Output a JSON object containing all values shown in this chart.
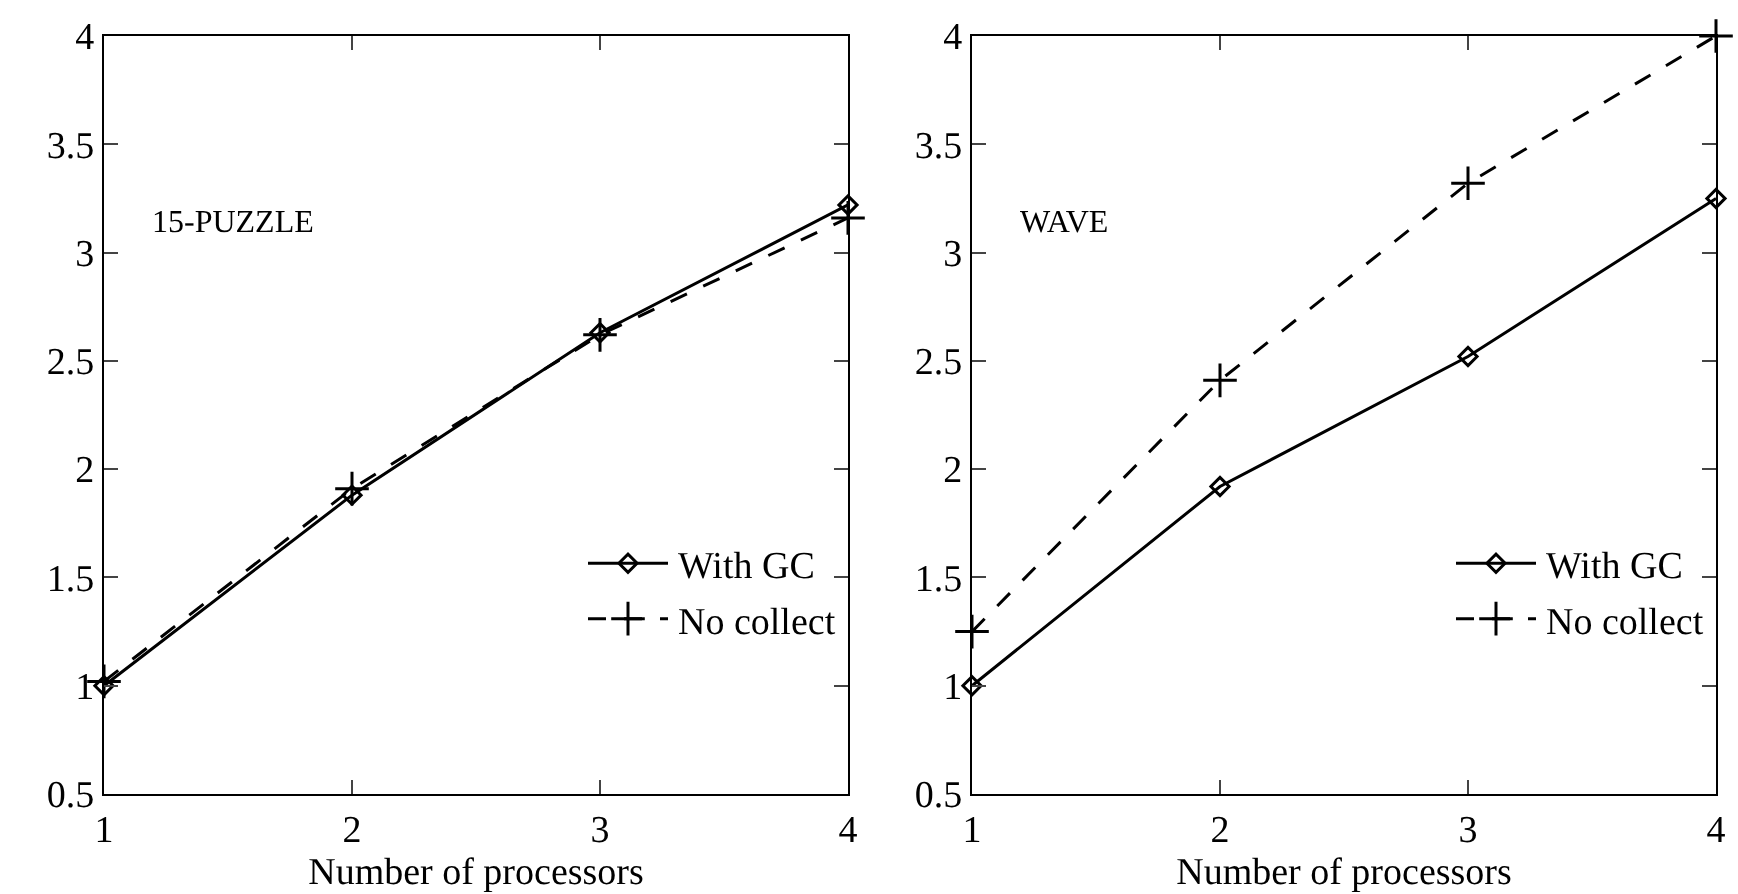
{
  "chart_data": [
    {
      "type": "line",
      "xlabel": "Number of processors",
      "annotations": [
        "15-PUZZLE"
      ],
      "x": [
        1,
        2,
        3,
        4
      ],
      "xlim": [
        1,
        4
      ],
      "xticks": [
        1,
        2,
        3,
        4
      ],
      "ylim": [
        0.5,
        4
      ],
      "yticks": [
        0.5,
        1,
        1.5,
        2,
        2.5,
        3,
        3.5,
        4
      ],
      "grid": false,
      "legend": "bottom right",
      "series": [
        {
          "name": "With GC",
          "color": "#000000",
          "marker": "diamond",
          "line_style": "solid",
          "values": [
            1.0,
            1.88,
            2.63,
            3.22
          ]
        },
        {
          "name": "No collect",
          "color": "#000000",
          "marker": "cross",
          "line_style": "dashed",
          "values": [
            1.02,
            1.91,
            2.62,
            3.16
          ]
        }
      ]
    },
    {
      "type": "line",
      "xlabel": "Number of processors",
      "annotations": [
        "WAVE"
      ],
      "x": [
        1,
        2,
        3,
        4
      ],
      "xlim": [
        1,
        4
      ],
      "xticks": [
        1,
        2,
        3,
        4
      ],
      "ylim": [
        0.5,
        4
      ],
      "yticks": [
        0.5,
        1,
        1.5,
        2,
        2.5,
        3,
        3.5,
        4
      ],
      "grid": false,
      "legend": "bottom right",
      "series": [
        {
          "name": "With GC",
          "color": "#000000",
          "marker": "diamond",
          "line_style": "solid",
          "values": [
            1.0,
            1.92,
            2.52,
            3.25
          ]
        },
        {
          "name": "No collect",
          "color": "#000000",
          "marker": "cross",
          "line_style": "dashed",
          "values": [
            1.25,
            2.41,
            3.32,
            4.0
          ]
        }
      ]
    }
  ]
}
